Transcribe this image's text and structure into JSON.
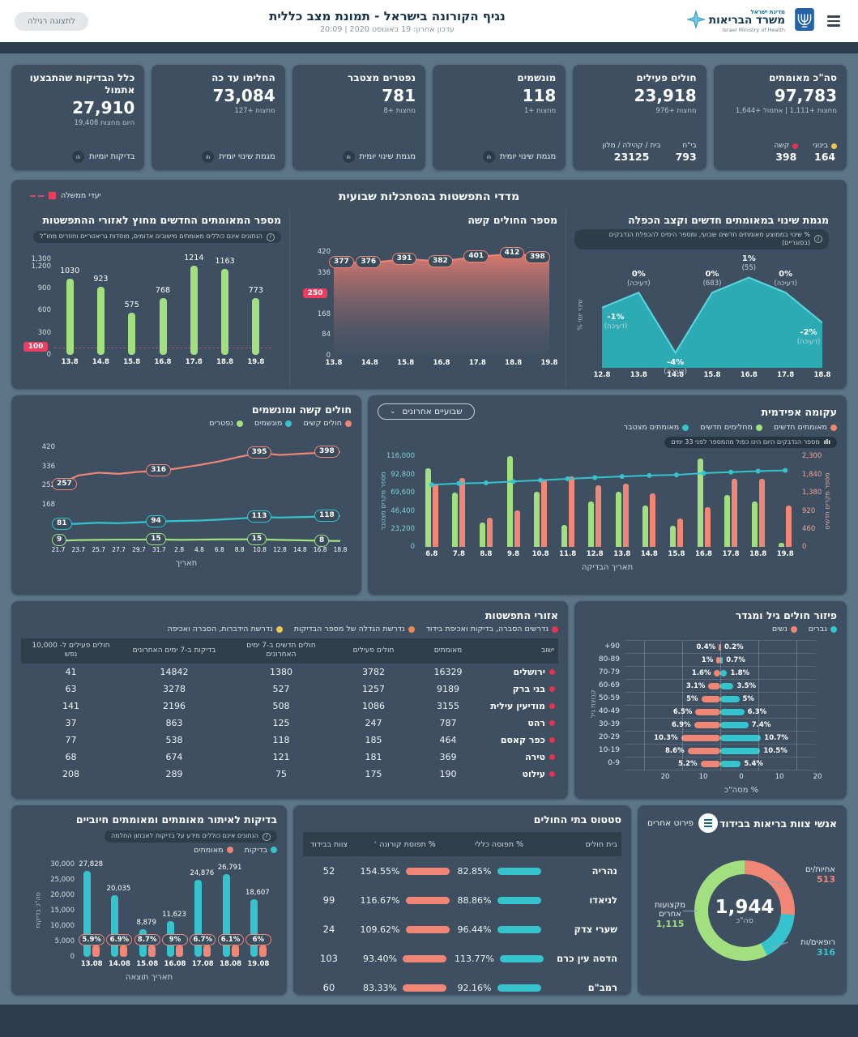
{
  "colors": {
    "teal": "#35c4cd",
    "green": "#a2df7e",
    "salmon": "#ef8676",
    "red": "#e5344e",
    "orange": "#ef8656",
    "yellow": "#e9c750",
    "card": "#3d4f60"
  },
  "header": {
    "brand_top": "מדינת ישראל",
    "brand_name": "משרד הבריאות",
    "brand_sub": "Israel Ministry of Health",
    "title": "נגיף הקורונה בישראל - תמונת מצב כללית",
    "updated": "עדכון אחרון: 19 באוגוסט 2020 | 20:09",
    "display_button": "לתצוגה רגילה"
  },
  "weekly": {
    "title": "מדדי התפשטות בהסתכלות שבועית",
    "legend_label": "יעדי ממשלה"
  },
  "stat_cards": [
    {
      "title": "סה\"כ מאומתים",
      "value": "97,783",
      "sub": "מחצות +1,111 | אתמול +1,644",
      "footer_type": "pairs",
      "pairs": [
        {
          "label": "בינוני",
          "value": "164",
          "dot": "yellow"
        },
        {
          "label": "קשה",
          "value": "398",
          "dot": "red"
        }
      ]
    },
    {
      "title": "חולים פעילים",
      "value": "23,918",
      "sub": "מחצות +976",
      "footer_type": "pairs",
      "pairs": [
        {
          "label": "בי\"ח",
          "value": "793"
        },
        {
          "label": "בית / קהילה / מלון",
          "value": "23125"
        }
      ]
    },
    {
      "title": "מונשמים",
      "value": "118",
      "sub": "מחצות +1",
      "footer_type": "link",
      "link": "מגמת שינוי יומית"
    },
    {
      "title": "נפטרים מצטבר",
      "value": "781",
      "sub": "מחצות +8",
      "footer_type": "link",
      "link": "מגמת שינוי יומית"
    },
    {
      "title": "החלימו עד כה",
      "value": "73,084",
      "sub": "מחצות +127",
      "footer_type": "link",
      "link": "מגמת שינוי יומית"
    },
    {
      "title": "כלל הבדיקות שהתבצעו אתמול",
      "value": "27,910",
      "sub": "היום מחצות 19,408",
      "footer_type": "link",
      "link": "בדיקות יומיות"
    }
  ],
  "chart_data": [
    {
      "id": "new_confirmed_outside",
      "type": "bar",
      "title": "מספר המאומתים החדשים מחוץ לאזורי ההתפשטות",
      "note": "הנתונים אינם כוללים מאומתים מישובים אדומים, מוסדות גריאטריים וחוזרים מחו\"ל",
      "categories": [
        "13.8",
        "14.8",
        "15.8",
        "16.8",
        "17.8",
        "18.8",
        "19.8"
      ],
      "values": [
        1030,
        923,
        575,
        768,
        1214,
        1163,
        773
      ],
      "ylim": [
        0,
        1300
      ],
      "yticks": [
        0,
        300,
        600,
        900,
        1200,
        1300
      ],
      "target": 100,
      "bar_color": "green"
    },
    {
      "id": "severe_count",
      "type": "area",
      "title": "מספר החולים קשה",
      "categories": [
        "13.8",
        "14.8",
        "15.8",
        "16.8",
        "17.8",
        "18.8",
        "19.8"
      ],
      "values": [
        377,
        376,
        391,
        382,
        401,
        412,
        398
      ],
      "ylim": [
        0,
        420
      ],
      "yticks": [
        0,
        84,
        168,
        336,
        420
      ],
      "target": 250
    },
    {
      "id": "change_trend",
      "type": "trend",
      "title": "מגמת שינוי במאומתים חדשים וקצב הכפלה",
      "note": "% שינוי בממוצע מאומתים חדשים שבועי, ומספר הימים להכפלת הנדבקים (בסוגריים)",
      "ylabel": "% שינוי יומי",
      "categories": [
        "12.8",
        "13.8",
        "14.8",
        "15.8",
        "16.8",
        "17.8",
        "18.8"
      ],
      "values": [
        -1,
        0,
        -4,
        0,
        1,
        0,
        -2
      ],
      "labels": [
        "-1%",
        "0%",
        "-4%",
        "0%",
        "1%",
        "0%",
        "-2%"
      ],
      "sublabels": [
        "(דעיכה)",
        "(דעיכה)",
        "(דעיכה)",
        "(683)",
        "(55)",
        "(דעיכה)",
        "(דעיכה)"
      ]
    },
    {
      "id": "severe_vent",
      "type": "multiline",
      "title": "חולים קשה ומונשמים",
      "legend": [
        {
          "label": "חולים קשים",
          "color": "salmon"
        },
        {
          "label": "מונשמים",
          "color": "teal"
        },
        {
          "label": "נפטרים",
          "color": "green"
        }
      ],
      "categories": [
        "21.7",
        "23.7",
        "25.7",
        "27.7",
        "29.7",
        "31.7",
        "2.8",
        "4.8",
        "6.8",
        "8.8",
        "10.8",
        "12.8",
        "14.8",
        "16.8",
        "18.8"
      ],
      "series": [
        {
          "name": "חולים קשים",
          "color": "salmon",
          "values": [
            257,
            296,
            308,
            303,
            312,
            316,
            328,
            342,
            358,
            378,
            395,
            386,
            391,
            396,
            398
          ]
        },
        {
          "name": "מונשמים",
          "color": "teal",
          "values": [
            81,
            84,
            88,
            86,
            90,
            94,
            96,
            98,
            102,
            107,
            113,
            111,
            113,
            115,
            118
          ]
        },
        {
          "name": "נפטרים",
          "color": "green",
          "values": [
            9,
            12,
            13,
            14,
            14,
            15,
            13,
            14,
            15,
            15,
            15,
            13,
            11,
            9,
            8
          ]
        }
      ],
      "label_indices": [
        0,
        5,
        10,
        14
      ],
      "ylim": [
        0,
        420
      ],
      "yticks": [
        168,
        252,
        336,
        420
      ],
      "xlabel": "תאריך"
    },
    {
      "id": "epidemic",
      "type": "dual",
      "title": "עקומה אפידמית",
      "dropdown": "שבועיים אחרונים",
      "note": "מספר הנדבקים היום הינו כפול מהמספר לפני 33 ימים",
      "legend": [
        {
          "label": "מאומתים חדשים",
          "color": "salmon"
        },
        {
          "label": "מחלימים חדשים",
          "color": "green"
        },
        {
          "label": "מאומתים מצטבר",
          "color": "teal"
        }
      ],
      "categories": [
        "6.8",
        "7.8",
        "8.8",
        "9.8",
        "10.8",
        "11.8",
        "12.8",
        "13.8",
        "14.8",
        "15.8",
        "16.8",
        "17.8",
        "18.8",
        "19.8"
      ],
      "bars": [
        {
          "name": "מחלימים חדשים",
          "color": "green",
          "values": [
            2000,
            1390,
            620,
            2300,
            1400,
            560,
            1160,
            1400,
            1060,
            540,
            2250,
            1320,
            1160,
            120
          ]
        },
        {
          "name": "מאומתים חדשים",
          "color": "salmon",
          "values": [
            1600,
            1760,
            750,
            940,
            1720,
            1800,
            1560,
            1620,
            1360,
            720,
            1010,
            1740,
            1730,
            1060
          ]
        }
      ],
      "line": {
        "name": "מאומתים מצטבר",
        "color": "teal",
        "values": [
          79500,
          81000,
          81800,
          83500,
          85200,
          87000,
          88500,
          90000,
          91300,
          92100,
          94200,
          95600,
          96800,
          97783
        ]
      },
      "left_ticks": [
        "0",
        "23,200",
        "46,400",
        "69,600",
        "92,800",
        "116,000"
      ],
      "right_ticks": [
        "0",
        "460",
        "920",
        "1,380",
        "1,840",
        "2,300"
      ],
      "left_max": 116000,
      "right_max": 2300,
      "left_label": "מספר מקרים מצטבר",
      "right_label": "מספר מקרים חדשים",
      "xlabel": "תאריך הבדיקה"
    },
    {
      "id": "spread_areas",
      "type": "table",
      "title": "אזורי התפשטות",
      "legend": [
        {
          "label": "נדרשים הסברה, בדיקות ואכיפת בידוד",
          "color": "red"
        },
        {
          "label": "נדרשת הגדלה של מספר הבדיקות",
          "color": "orange"
        },
        {
          "label": "נדרשת הידברות, הסברה ואכיפה",
          "color": "yellow"
        }
      ],
      "columns": [
        "ישוב",
        "מאומתים",
        "חולים פעילים",
        "חולים חדשים ב-7 ימים האחרונים",
        "בדיקות ב-7 ימים האחרונים",
        "חולים פעילים ל- 10,000 נפש"
      ],
      "rows": [
        {
          "town": "ירושלים",
          "dot": "red",
          "cells": [
            "16329",
            "3782",
            "1380",
            "14842",
            "41"
          ]
        },
        {
          "town": "בני ברק",
          "dot": "red",
          "cells": [
            "9189",
            "1257",
            "527",
            "3278",
            "63"
          ]
        },
        {
          "town": "מודיעין עילית",
          "dot": "red",
          "cells": [
            "3155",
            "1086",
            "508",
            "2196",
            "141"
          ]
        },
        {
          "town": "רהט",
          "dot": "red",
          "cells": [
            "787",
            "247",
            "125",
            "863",
            "37"
          ]
        },
        {
          "town": "כפר קאסם",
          "dot": "red",
          "cells": [
            "464",
            "185",
            "118",
            "538",
            "77"
          ]
        },
        {
          "town": "טירה",
          "dot": "red",
          "cells": [
            "369",
            "181",
            "121",
            "674",
            "68"
          ]
        },
        {
          "town": "עילוט",
          "dot": "red",
          "cells": [
            "190",
            "175",
            "75",
            "289",
            "208"
          ]
        }
      ]
    },
    {
      "id": "age_gender",
      "type": "pyramid",
      "title": "פיזור חולים גיל ומגדר",
      "legend": [
        {
          "label": "גברים",
          "color": "teal"
        },
        {
          "label": "נשים",
          "color": "salmon"
        }
      ],
      "groups": [
        {
          "age": "+90",
          "women": 0.4,
          "men": 0.2,
          "women_label": "0.4%",
          "men_label": "0.2%"
        },
        {
          "age": "80-89",
          "women": 1,
          "men": 0.7,
          "women_label": "1%",
          "men_label": "0.7%"
        },
        {
          "age": "70-79",
          "women": 1.6,
          "men": 1.8,
          "women_label": "1.6%",
          "men_label": "1.8%"
        },
        {
          "age": "60-69",
          "women": 3.1,
          "men": 3.5,
          "women_label": "3.1%",
          "men_label": "3.5%"
        },
        {
          "age": "50-59",
          "women": 5,
          "men": 5,
          "women_label": "5%",
          "men_label": "5%"
        },
        {
          "age": "40-49",
          "women": 6.5,
          "men": 6.3,
          "women_label": "6.5%",
          "men_label": "6.3%"
        },
        {
          "age": "30-39",
          "women": 6.9,
          "men": 7.4,
          "women_label": "6.9%",
          "men_label": "7.4%"
        },
        {
          "age": "20-29",
          "women": 10.3,
          "men": 10.7,
          "women_label": "10.3%",
          "men_label": "10.7%"
        },
        {
          "age": "10-19",
          "women": 8.6,
          "men": 10.5,
          "women_label": "8.6%",
          "men_label": "10.5%"
        },
        {
          "age": "0-9",
          "women": 5.2,
          "men": 5.4,
          "women_label": "5.2%",
          "men_label": "5.4%"
        }
      ],
      "xmax": 20,
      "xticks": [
        "20",
        "10",
        "0",
        "10",
        "20"
      ],
      "xlabel": "% מסה\"כ",
      "ylabel": "קבוצת גיל"
    },
    {
      "id": "tests",
      "type": "tests",
      "title": "בדיקות לאיתור מאומתים ומאומתים חיוביים",
      "note": "הנתונים אינם כוללים מידע על בדיקות לאבחון החלמה",
      "legend": [
        {
          "label": "בדיקות",
          "color": "teal"
        },
        {
          "label": "מאומתים",
          "color": "salmon"
        }
      ],
      "categories": [
        "13.08",
        "14.08",
        "15.08",
        "16.08",
        "17.08",
        "18.08",
        "19.08"
      ],
      "tests": [
        27828,
        20035,
        8879,
        11623,
        24876,
        26791,
        18607
      ],
      "test_labels": [
        "27,828",
        "20,035",
        "8,879",
        "11,623",
        "24,876",
        "26,791",
        "18,607"
      ],
      "positive_rates": [
        "5.9%",
        "6.9%",
        "8.7%",
        "9%",
        "6.7%",
        "6.1%",
        "6%"
      ],
      "ymax": 30000,
      "yticks": [
        "0",
        "5,000",
        "10,000",
        "15,000",
        "20,000",
        "25,000",
        "30,000"
      ],
      "ylabel": "סה\"כ בדיקות",
      "xlabel": "תאריך תוצאה"
    },
    {
      "id": "hospitals",
      "type": "hospital_table",
      "title": "סטטוס בתי החולים",
      "columns": [
        "בית חולים",
        "% תפוסה כללי",
        "% תפוסת קורונה",
        "צוות בבידוד"
      ],
      "rows": [
        {
          "name": "נהריה",
          "general": "82.85%",
          "corona": "154.55%",
          "staff": "52"
        },
        {
          "name": "לניאדו",
          "general": "88.86%",
          "corona": "116.67%",
          "staff": "99"
        },
        {
          "name": "שערי צדק",
          "general": "96.44%",
          "corona": "109.62%",
          "staff": "24"
        },
        {
          "name": "הדסה עין כרם",
          "general": "113.77%",
          "corona": "93.40%",
          "staff": "103"
        },
        {
          "name": "רמב\"ם",
          "general": "92.16%",
          "corona": "83.33%",
          "staff": "60"
        }
      ]
    },
    {
      "id": "staff_isolation",
      "type": "donut",
      "title": "אנשי צוות בריאות בבידוד",
      "button": "פירוט אחרים",
      "total": "1,944",
      "total_label": "סה\"כ",
      "slices": [
        {
          "label": "אחיות/ים",
          "value": 513,
          "display": "513",
          "color": "salmon"
        },
        {
          "label": "רופאים/ות",
          "value": 316,
          "display": "316",
          "color": "teal"
        },
        {
          "label": "מקצועות אחרים",
          "value": 1115,
          "display": "1,115",
          "color": "green"
        }
      ]
    }
  ]
}
